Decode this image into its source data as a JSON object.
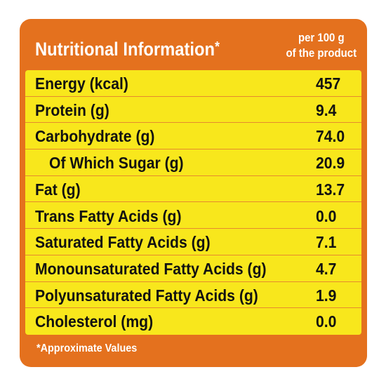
{
  "header": {
    "title": "Nutritional Information",
    "title_mark": "*",
    "per_line1": "per 100 g",
    "per_line2": "of the product"
  },
  "rows": [
    {
      "name": "Energy (kcal)",
      "value": "457"
    },
    {
      "name": "Protein (g)",
      "value": "9.4"
    },
    {
      "name": "Carbohydrate (g)",
      "value": "74.0"
    },
    {
      "name": "Of Which Sugar (g)",
      "value": "20.9"
    },
    {
      "name": "Fat (g)",
      "value": "13.7"
    },
    {
      "name": "Trans Fatty Acids (g)",
      "value": "0.0"
    },
    {
      "name": "Saturated Fatty Acids (g)",
      "value": "7.1"
    },
    {
      "name": "Monounsaturated Fatty Acids (g)",
      "value": "4.7"
    },
    {
      "name": "Polyunsaturated Fatty Acids (g)",
      "value": "1.9"
    },
    {
      "name": "Cholesterol (mg)",
      "value": "0.0"
    }
  ],
  "footnote": "*Approximate Values",
  "colors": {
    "panel": "#e4711e",
    "table": "#f8e71c",
    "text": "#111111",
    "header_text": "#ffffff"
  }
}
